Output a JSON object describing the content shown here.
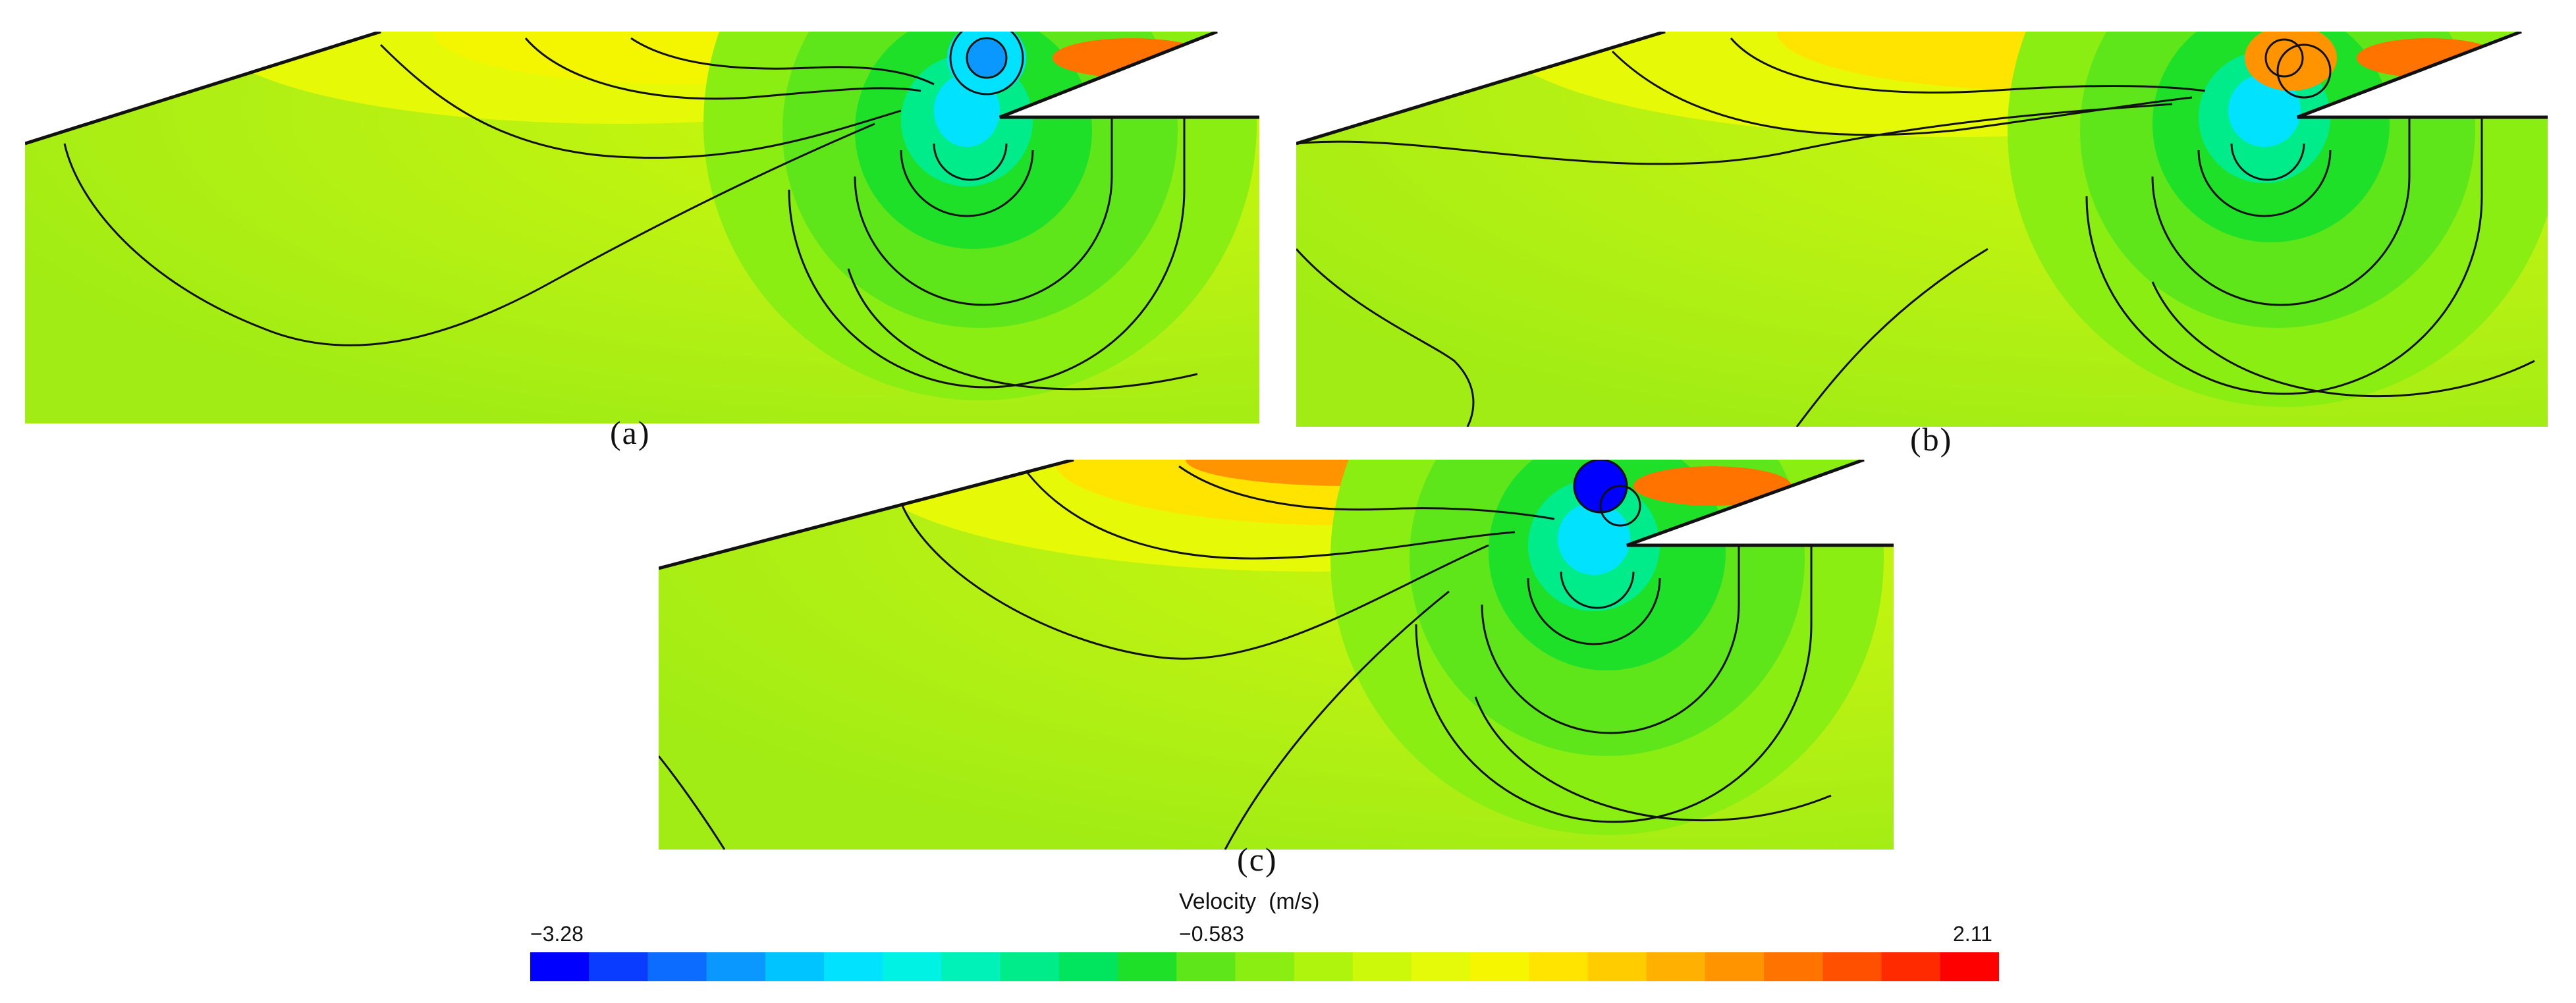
{
  "panels": [
    {
      "id": "a",
      "label": "(a)"
    },
    {
      "id": "b",
      "label": "(b)"
    },
    {
      "id": "c",
      "label": "(c)"
    }
  ],
  "legend": {
    "title": "Velocity  (m/s)",
    "min_label": "−3.28",
    "mid_label": "−0.583",
    "max_label": "2.11",
    "colors": [
      "#0000ff",
      "#0a3cff",
      "#0c6cff",
      "#0a98ff",
      "#00c4ff",
      "#00e2ff",
      "#00f2e4",
      "#00f2b8",
      "#00ec8a",
      "#00e45e",
      "#1ee028",
      "#5ee61a",
      "#8aee12",
      "#aef40c",
      "#ccf80a",
      "#e4fa08",
      "#f6f600",
      "#ffe400",
      "#ffcc00",
      "#ffb000",
      "#ff9400",
      "#ff7400",
      "#ff5000",
      "#ff2a00",
      "#ff0000"
    ]
  }
}
